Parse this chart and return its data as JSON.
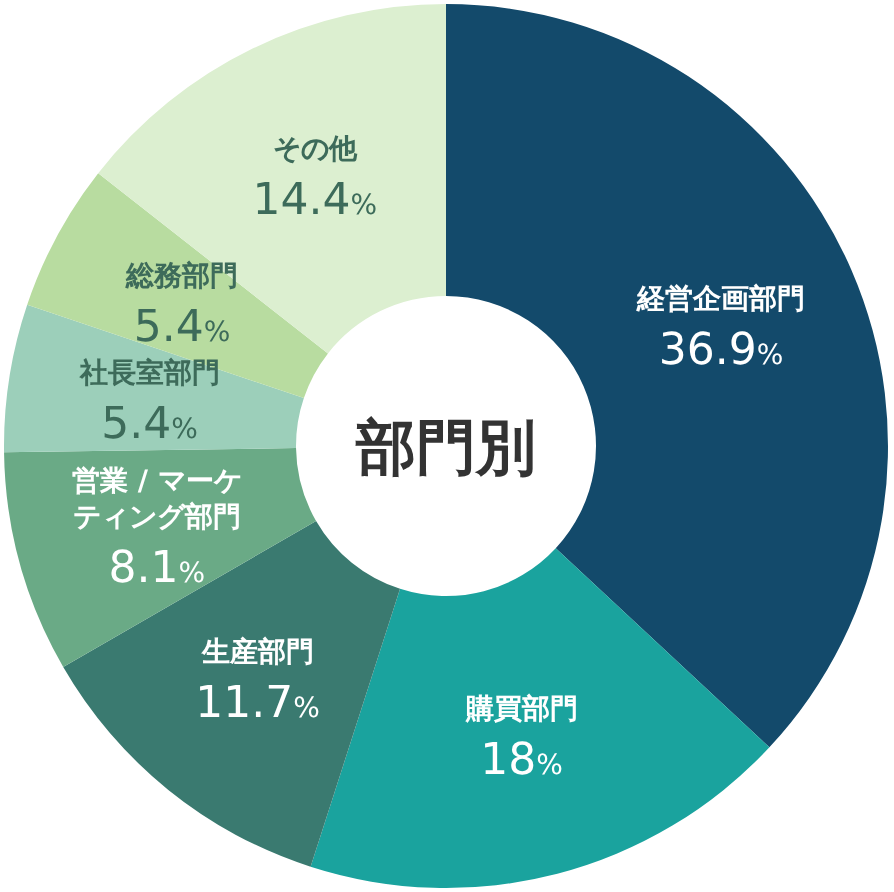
{
  "chart_data": {
    "type": "donut",
    "title": "部門別",
    "categories": [
      "経営企画部門",
      "購買部門",
      "生産部門",
      "営業 / マーケティング部門",
      "社長室部門",
      "総務部門",
      "その他"
    ],
    "values": [
      36.9,
      18,
      11.7,
      8.1,
      5.4,
      5.4,
      14.4
    ],
    "colors": [
      "#134a6b",
      "#1aa39e",
      "#3a7a70",
      "#6aaa86",
      "#9ccfba",
      "#b8dca0",
      "#dcefd0"
    ],
    "value_labels": [
      "36.9%",
      "18%",
      "11.7%",
      "8.1%",
      "5.4%",
      "5.4%",
      "14.4%"
    ]
  }
}
